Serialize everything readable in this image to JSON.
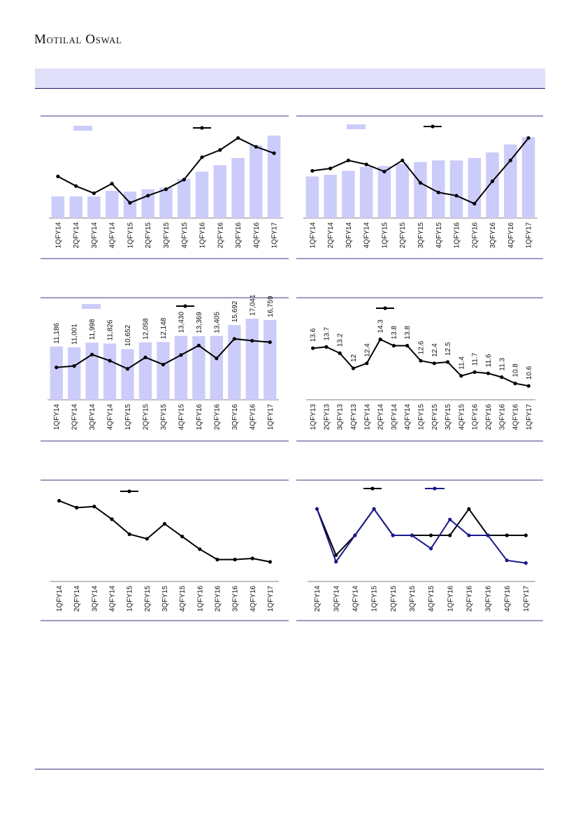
{
  "header": {
    "logo_text": "Motilal Oswal",
    "banner_text": ""
  },
  "colors": {
    "bar": "#ccccfa",
    "line": "#000000",
    "line_alt": "#1a1a8c",
    "rule": "#3a3a80"
  },
  "chart_data": [
    {
      "id": "chart-1",
      "type": "bar",
      "categories": [
        "1QFY14",
        "2QFY14",
        "3QFY14",
        "4QFY14",
        "1QFY15",
        "2QFY15",
        "3QFY15",
        "4QFY15",
        "1QFY16",
        "2QFY16",
        "3QFY16",
        "4QFY16",
        "1QFY17"
      ],
      "series": [
        {
          "kind": "bar",
          "values": [
            27,
            27,
            27,
            34,
            33,
            36,
            38,
            49,
            58,
            66,
            75,
            91,
            103
          ]
        },
        {
          "kind": "line",
          "values": [
            52,
            40,
            31,
            43,
            19,
            28,
            36,
            48,
            76,
            85,
            100,
            89,
            81
          ]
        }
      ],
      "ylim": [
        0,
        110
      ]
    },
    {
      "id": "chart-2",
      "type": "bar",
      "categories": [
        "1QFY14",
        "2QFY14",
        "3QFY14",
        "4QFY14",
        "1QFY15",
        "2QFY15",
        "3QFY15",
        "4QFY15",
        "1QFY16",
        "2QFY16",
        "3QFY16",
        "4QFY16",
        "1QFY17"
      ],
      "series": [
        {
          "kind": "bar",
          "values": [
            52,
            54,
            59,
            64,
            65,
            68,
            70,
            72,
            72,
            75,
            82,
            92,
            101
          ]
        },
        {
          "kind": "line",
          "values": [
            59,
            62,
            72,
            67,
            58,
            72,
            44,
            32,
            28,
            18,
            46,
            72,
            100
          ]
        }
      ],
      "ylim": [
        0,
        110
      ]
    },
    {
      "id": "chart-3",
      "type": "bar",
      "categories": [
        "1QFY14",
        "2QFY14",
        "3QFY14",
        "4QFY14",
        "1QFY15",
        "2QFY15",
        "3QFY15",
        "4QFY15",
        "1QFY16",
        "2QFY16",
        "3QFY16",
        "4QFY16",
        "1QFY17"
      ],
      "series": [
        {
          "kind": "bar",
          "values": [
            11186,
            11001,
            11998,
            11826,
            10652,
            12058,
            12148,
            13430,
            13369,
            13405,
            15692,
            17041,
            16759
          ],
          "labels": [
            "11,186",
            "11,001",
            "11,998",
            "11,826",
            "10,652",
            "12,058",
            "12,148",
            "13,430",
            "13,369",
            "13,405",
            "15,692",
            "17,041",
            "16,759"
          ]
        },
        {
          "kind": "line",
          "values": [
            6800,
            7100,
            9500,
            8200,
            6500,
            8900,
            7400,
            9400,
            11400,
            8700,
            12800,
            12400,
            12100
          ]
        }
      ],
      "ylim": [
        0,
        18500
      ]
    },
    {
      "id": "chart-4",
      "type": "line",
      "categories": [
        "1QFY13",
        "2QFY13",
        "3QFY13",
        "4QFY13",
        "1QFY14",
        "2QFY14",
        "3QFY14",
        "4QFY14",
        "1QFY15",
        "2QFY15",
        "3QFY15",
        "4QFY15",
        "1QFY16",
        "2QFY16",
        "3QFY16",
        "4QFY16",
        "1QFY17"
      ],
      "series": [
        {
          "kind": "line",
          "values": [
            13.6,
            13.7,
            13.2,
            12.0,
            12.4,
            14.3,
            13.8,
            13.8,
            12.6,
            12.4,
            12.5,
            11.4,
            11.7,
            11.6,
            11.3,
            10.8,
            10.6
          ],
          "labels": [
            "13.6",
            "13.7",
            "13.2",
            "12",
            "12.4",
            "14.3",
            "13.8",
            "13.8",
            "12.6",
            "12.4",
            "12.5",
            "11.4",
            "11.7",
            "11.6",
            "11.3",
            "10.8",
            "10.6"
          ]
        }
      ],
      "ylim": [
        9.5,
        16.5
      ]
    },
    {
      "id": "chart-5",
      "type": "line",
      "categories": [
        "1QFY14",
        "2QFY14",
        "3QFY14",
        "4QFY14",
        "1QFY15",
        "2QFY15",
        "3QFY15",
        "4QFY15",
        "1QFY16",
        "2QFY16",
        "3QFY16",
        "4QFY16",
        "1QFY17"
      ],
      "series": [
        {
          "kind": "line",
          "values": [
            100,
            94,
            95,
            84,
            71,
            67,
            80,
            69,
            58,
            49,
            49,
            50,
            47
          ]
        }
      ],
      "ylim": [
        30,
        110
      ]
    },
    {
      "id": "chart-6",
      "type": "line",
      "categories": [
        "2QFY14",
        "3QFY14",
        "4QFY14",
        "1QFY15",
        "2QFY15",
        "3QFY15",
        "4QFY15",
        "1QFY16",
        "2QFY16",
        "3QFY16",
        "4QFY16",
        "1QFY17"
      ],
      "series": [
        {
          "kind": "line",
          "color": "line",
          "values": [
            10,
            6.5,
            8,
            10,
            8,
            8,
            8,
            8,
            10,
            8,
            8,
            8
          ]
        },
        {
          "kind": "line",
          "color": "line_alt",
          "values": [
            10,
            6.0,
            8,
            10,
            8,
            8,
            7,
            9.2,
            8,
            8,
            6.1,
            5.9
          ]
        }
      ],
      "ylim": [
        4.5,
        11.5
      ]
    }
  ]
}
